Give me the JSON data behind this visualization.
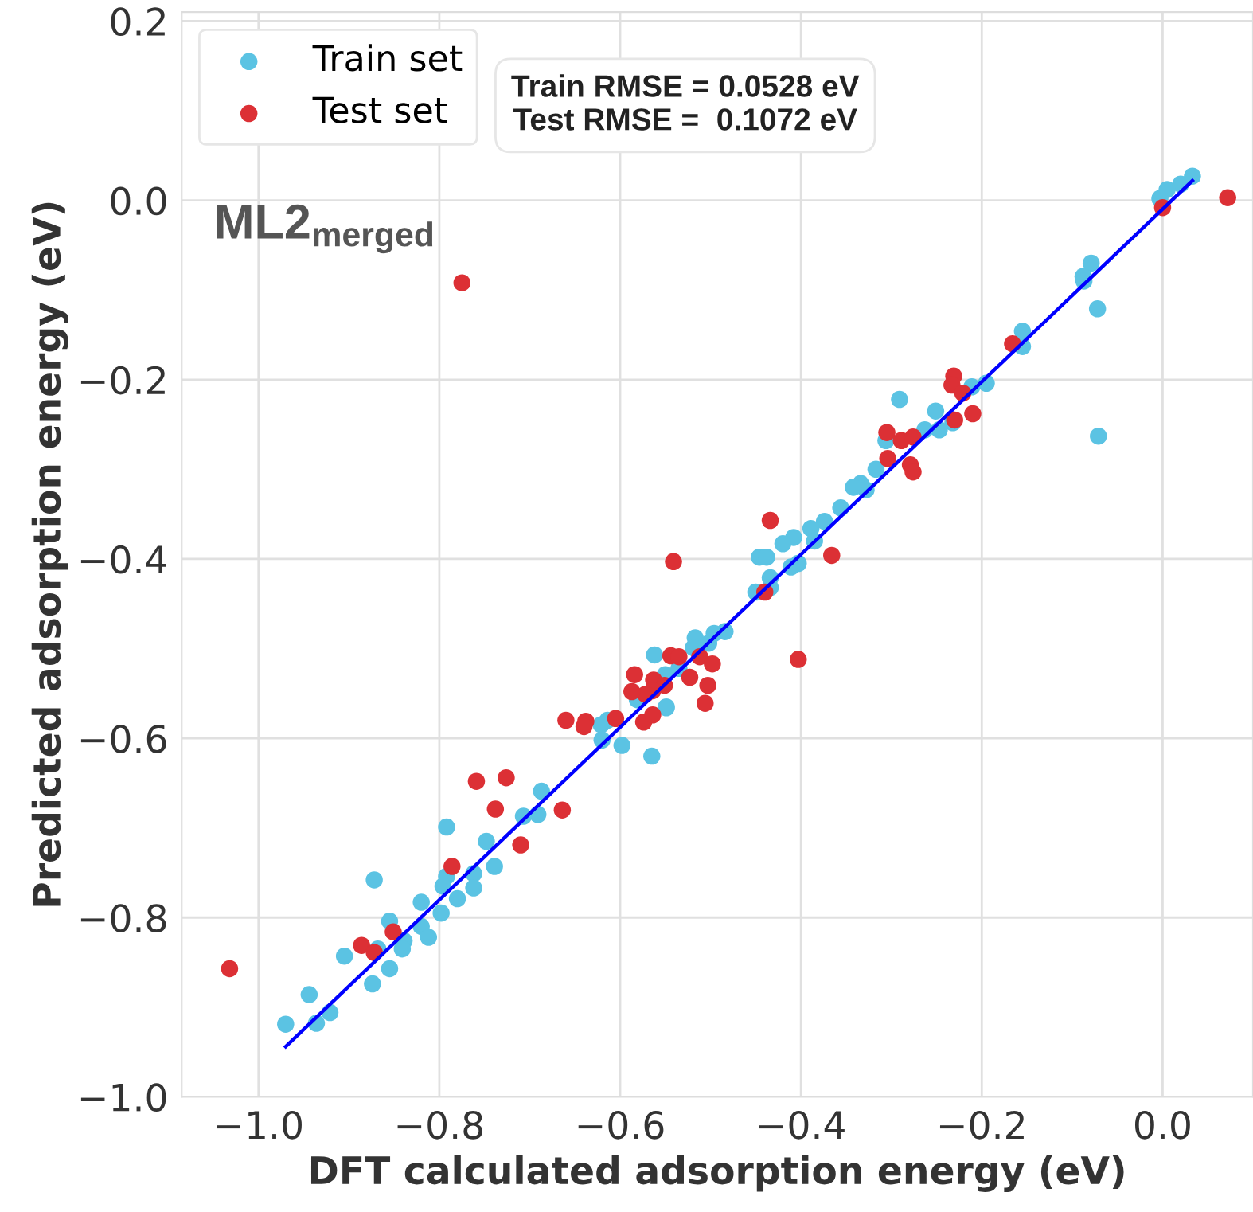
{
  "chart_data": {
    "type": "scatter",
    "xlabel": "DFT calculated adsorption energy (eV)",
    "ylabel": "Predicted adsorption energy (eV)",
    "annotations": [
      "Train RMSE = 0.0528 eV\nTest RMSE =  0.1072 eV",
      "ML2$_{merged}$"
    ],
    "xlim": [
      -1.085,
      0.1
    ],
    "xticks": [
      {
        "value": -1.0,
        "label": "−1.0"
      },
      {
        "value": -0.8,
        "label": "−0.8"
      },
      {
        "value": -0.6,
        "label": "−0.6"
      },
      {
        "value": -0.4,
        "label": "−0.4"
      },
      {
        "value": -0.2,
        "label": "−0.2"
      },
      {
        "value": 0.0,
        "label": "0.0"
      }
    ],
    "ylim": [
      -1.0,
      0.21
    ],
    "yticks": [
      {
        "value": -1.0,
        "label": "−1.0"
      },
      {
        "value": -0.8,
        "label": "−0.8"
      },
      {
        "value": -0.6,
        "label": "−0.6"
      },
      {
        "value": -0.4,
        "label": "−0.4"
      },
      {
        "value": -0.2,
        "label": "−0.2"
      },
      {
        "value": 0.0,
        "label": "0.0"
      },
      {
        "value": 0.2,
        "label": "0.2"
      }
    ],
    "grid": true,
    "legend": "top left",
    "marker": "circle",
    "series": [
      {
        "name": "Train set",
        "color": "#5bc3e3",
        "x": [
          0.02,
          0.033,
          -0.003,
          0.005,
          -0.079,
          -0.088,
          -0.087,
          -0.072,
          -0.071,
          -0.155,
          -0.155,
          -0.195,
          -0.211,
          -0.291,
          -0.251,
          -0.232,
          -0.247,
          -0.263,
          -0.306,
          -0.317,
          -0.334,
          -0.328,
          -0.342,
          -0.356,
          -0.374,
          -0.389,
          -0.408,
          -0.42,
          -0.403,
          -0.411,
          -0.446,
          -0.438,
          -0.434,
          -0.45,
          -0.434,
          -0.385,
          -0.484,
          -0.496,
          -0.517,
          -0.562,
          -0.502,
          -0.519,
          -0.535,
          -0.55,
          -0.581,
          -0.549,
          -0.614,
          -0.598,
          -0.565,
          -0.62,
          -0.621,
          -0.549,
          -0.687,
          -0.691,
          -0.707,
          -0.748,
          -0.739,
          -0.792,
          -0.762,
          -0.762,
          -0.78,
          -0.792,
          -0.796,
          -0.798,
          -0.82,
          -0.82,
          -0.812,
          -0.839,
          -0.841,
          -0.855,
          -0.855,
          -0.872,
          -0.868,
          -0.874,
          -0.905,
          -0.921,
          -0.944,
          -0.936,
          -0.97
        ],
        "values": [
          0.018,
          0.027,
          0.002,
          0.012,
          -0.07,
          -0.085,
          -0.09,
          -0.121,
          -0.263,
          -0.146,
          -0.163,
          -0.204,
          -0.208,
          -0.222,
          -0.235,
          -0.248,
          -0.256,
          -0.256,
          -0.268,
          -0.3,
          -0.316,
          -0.323,
          -0.32,
          -0.343,
          -0.358,
          -0.366,
          -0.376,
          -0.383,
          -0.405,
          -0.409,
          -0.398,
          -0.398,
          -0.421,
          -0.437,
          -0.432,
          -0.38,
          -0.481,
          -0.483,
          -0.488,
          -0.507,
          -0.494,
          -0.499,
          -0.522,
          -0.529,
          -0.557,
          -0.565,
          -0.58,
          -0.608,
          -0.62,
          -0.602,
          -0.585,
          -0.566,
          -0.659,
          -0.685,
          -0.687,
          -0.715,
          -0.743,
          -0.699,
          -0.751,
          -0.767,
          -0.779,
          -0.754,
          -0.765,
          -0.795,
          -0.783,
          -0.81,
          -0.822,
          -0.826,
          -0.835,
          -0.804,
          -0.857,
          -0.758,
          -0.835,
          -0.874,
          -0.843,
          -0.906,
          -0.886,
          -0.918,
          -0.919
        ]
      },
      {
        "name": "Test set",
        "color": "#dc3035",
        "x": [
          0.072,
          0.0,
          -0.775,
          -0.166,
          -0.231,
          -0.233,
          -0.221,
          -0.23,
          -0.21,
          -0.305,
          -0.289,
          -0.276,
          -0.279,
          -0.276,
          -0.304,
          -0.434,
          -0.541,
          -0.366,
          -0.44,
          -0.403,
          -0.544,
          -0.535,
          -0.512,
          -0.498,
          -0.523,
          -0.503,
          -0.584,
          -0.563,
          -0.551,
          -0.564,
          -0.572,
          -0.587,
          -0.66,
          -0.638,
          -1.032,
          -0.886,
          -0.872,
          -0.851,
          -0.786,
          -0.759,
          -0.726,
          -0.738,
          -0.71,
          -0.664,
          -0.64,
          -0.605,
          -0.574,
          -0.564,
          -0.506
        ],
        "values": [
          0.003,
          -0.008,
          -0.092,
          -0.16,
          -0.196,
          -0.206,
          -0.215,
          -0.245,
          -0.238,
          -0.259,
          -0.268,
          -0.264,
          -0.295,
          -0.303,
          -0.288,
          -0.357,
          -0.403,
          -0.396,
          -0.437,
          -0.512,
          -0.508,
          -0.509,
          -0.509,
          -0.517,
          -0.532,
          -0.541,
          -0.529,
          -0.535,
          -0.541,
          -0.547,
          -0.551,
          -0.548,
          -0.58,
          -0.581,
          -0.857,
          -0.831,
          -0.839,
          -0.816,
          -0.743,
          -0.648,
          -0.644,
          -0.679,
          -0.719,
          -0.68,
          -0.587,
          -0.578,
          -0.582,
          -0.574,
          -0.561
        ]
      },
      {
        "type": "line",
        "marker": "none",
        "color": "#0000ff",
        "x": [
          -0.97,
          0.033
        ],
        "values": [
          -0.944,
          0.022
        ]
      }
    ]
  }
}
